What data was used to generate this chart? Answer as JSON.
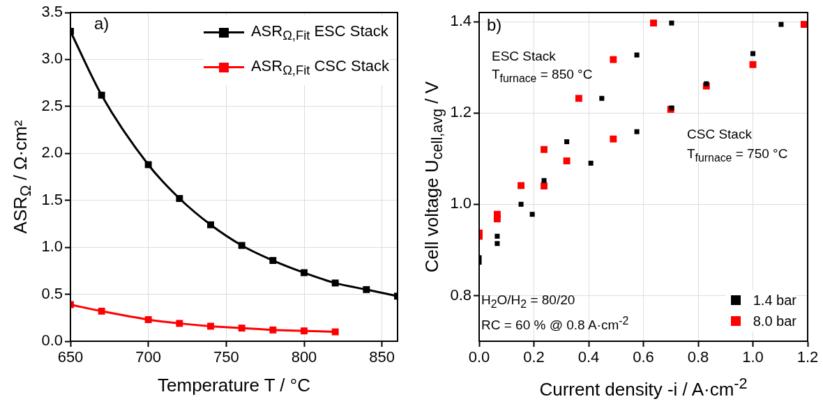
{
  "chart_data": [
    {
      "type": "line",
      "xlabel": "Temperature T / °C",
      "ylabel": "ASR$_{Ω}$ / Ω·cm²",
      "x": [
        650,
        670,
        700,
        720,
        740,
        760,
        780,
        800,
        820,
        840,
        860
      ],
      "marker": "square",
      "grid": true,
      "legend": "top right",
      "xlim": [
        650,
        860
      ],
      "xticks": [
        650,
        700,
        750,
        800,
        850
      ],
      "ylim": [
        0,
        3.5
      ],
      "yticks": [
        {
          "value": 0,
          "label": "0.0"
        },
        0.5,
        {
          "value": 1,
          "label": "1.0"
        },
        1.5,
        {
          "value": 2,
          "label": "2.0"
        },
        2.5,
        {
          "value": 3,
          "label": "3.0"
        },
        3.5
      ],
      "annotations": [
        "a)"
      ],
      "series": [
        {
          "name": "ASR$_{Ω,Fit}$ ESC Stack",
          "color": "#000000",
          "values": [
            3.3,
            2.62,
            1.88,
            1.52,
            1.24,
            1.02,
            0.86,
            0.73,
            0.62,
            0.55,
            0.48
          ]
        },
        {
          "name": "ASR$_{Ω,Fit}$ CSC Stack",
          "color": "#ff0000",
          "values": [
            0.39,
            0.32,
            0.23,
            0.19,
            0.16,
            0.14,
            0.12,
            0.11,
            0.1,
            null,
            null
          ]
        }
      ]
    },
    {
      "type": "scatter",
      "xlabel": "Current density -i / A·cm$^{-2}$",
      "ylabel": "Cell voltage U$_{cell,avg}$ / V",
      "marker": "square",
      "grid": true,
      "legend": "bottom right",
      "xlim": [
        0,
        1.2
      ],
      "xticks": [
        {
          "value": 0,
          "label": "0.0"
        },
        0.2,
        0.4,
        0.6,
        0.8,
        {
          "value": 1,
          "label": "1.0"
        },
        1.2
      ],
      "ylim": [
        0.7,
        1.42
      ],
      "yticks": [
        0.8,
        {
          "value": 1,
          "label": "1.0"
        },
        1.2,
        1.4
      ],
      "annotations": [
        "b)",
        "ESC Stack",
        "T$_{furnace}$ = 850 °C",
        "CSC Stack",
        "T$_{furnace}$ = 750 °C",
        "H$_{2}$O/H$_{2}$ = 80/20",
        "RC = 60 % @ 0.8 A·cm$^{-2}$"
      ],
      "series": [
        {
          "name": "1.4 bar",
          "color": "#000000",
          "x": [
            0,
            0.066,
            0.153,
            0.237,
            0.32,
            0.448,
            0.576,
            0.703,
            0,
            0.066,
            0.194,
            0.408,
            0.576,
            0.703,
            0.83,
            1.0,
            1.103
          ],
          "values": [
            0.873,
            0.93,
            1.0,
            1.052,
            1.137,
            1.232,
            1.327,
            1.397,
            0.883,
            0.914,
            0.978,
            1.09,
            1.159,
            1.211,
            1.264,
            1.33,
            1.394
          ]
        },
        {
          "name": "8.0 bar",
          "color": "#ff0000",
          "x": [
            0,
            0.066,
            0.153,
            0.237,
            0.364,
            0.49,
            0.637,
            0,
            0.066,
            0.237,
            0.32,
            0.49,
            0.7,
            0.83,
            1.0,
            1.187
          ],
          "values": [
            0.93,
            0.978,
            1.041,
            1.12,
            1.232,
            1.317,
            1.397,
            0.937,
            0.968,
            1.04,
            1.095,
            1.143,
            1.208,
            1.259,
            1.306,
            1.394
          ]
        }
      ]
    }
  ]
}
